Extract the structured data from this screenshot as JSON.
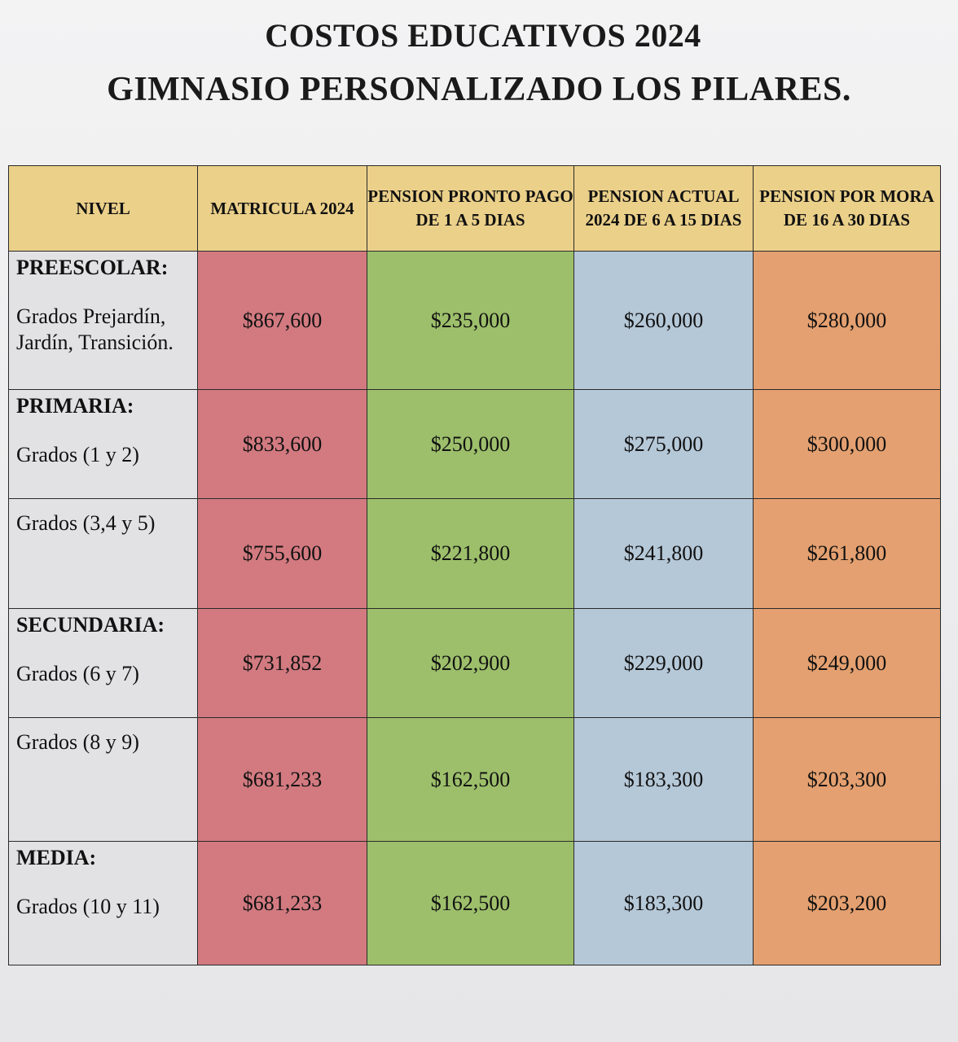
{
  "title": "COSTOS EDUCATIVOS 2024",
  "subtitle": "GIMNASIO PERSONALIZADO LOS PILARES.",
  "columns": [
    "NIVEL",
    "MATRICULA 2024",
    "PENSION PRONTO PAGO DE 1 A 5 DIAS",
    "PENSION ACTUAL 2024 DE 6 A 15 DIAS",
    "PENSION POR MORA DE 16 A 30 DIAS"
  ],
  "rows": [
    {
      "category": "PREESCOLAR:",
      "grades": "Grados Prejardín, Jardín, Transición.",
      "matricula": "$867,600",
      "pronto_pago": "$235,000",
      "actual": "$260,000",
      "mora": "$280,000"
    },
    {
      "category": "PRIMARIA:",
      "grades": "Grados (1 y 2)",
      "matricula": "$833,600",
      "pronto_pago": "$250,000",
      "actual": "$275,000",
      "mora": "$300,000"
    },
    {
      "category": "",
      "grades": "Grados (3,4 y 5)",
      "matricula": "$755,600",
      "pronto_pago": "$221,800",
      "actual": "$241,800",
      "mora": "$261,800"
    },
    {
      "category": "SECUNDARIA:",
      "grades": "Grados (6 y 7)",
      "matricula": "$731,852",
      "pronto_pago": "$202,900",
      "actual": "$229,000",
      "mora": "$249,000"
    },
    {
      "category": "",
      "grades": "Grados (8 y 9)",
      "matricula": "$681,233",
      "pronto_pago": "$162,500",
      "actual": "$183,300",
      "mora": "$203,300"
    },
    {
      "category": "MEDIA:",
      "grades": "Grados (10 y 11)",
      "matricula": "$681,233",
      "pronto_pago": "$162,500",
      "actual": "$183,300",
      "mora": "$203,200"
    }
  ],
  "colors": {
    "header": "#ebd08a",
    "nivel": "#e2e2e4",
    "matricula": "#d27a80",
    "pronto_pago": "#9dbf6b",
    "actual": "#b5c8d8",
    "mora": "#e4a070"
  }
}
